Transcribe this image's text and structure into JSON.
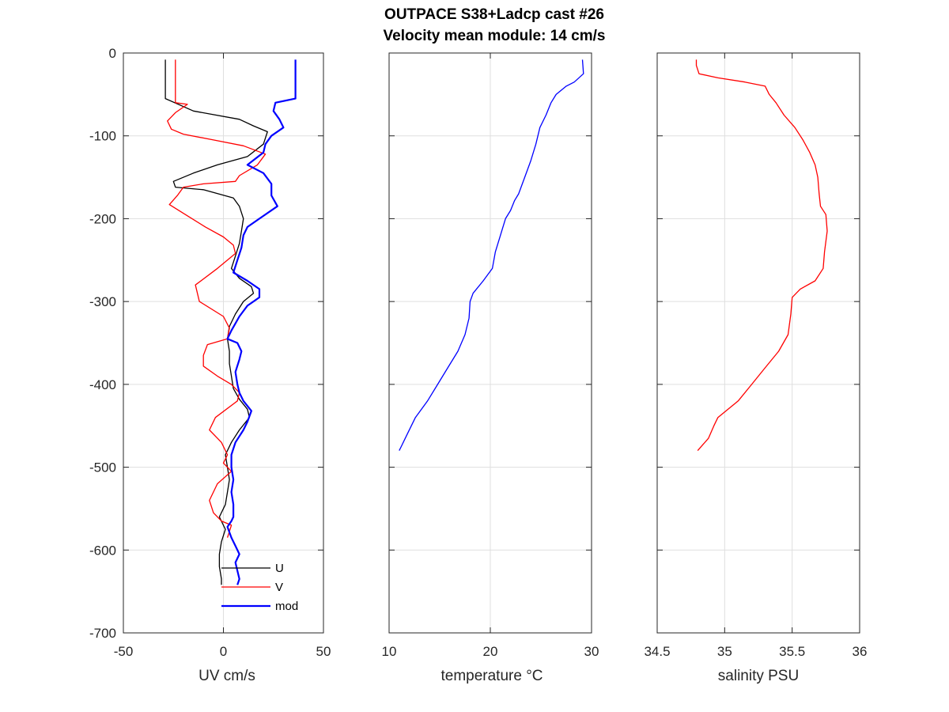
{
  "chart_data": {
    "title": "OUTPACE S38+Ladcp cast #26",
    "subtitle": "Velocity mean module:  14 cm/s",
    "y_ticks": [
      "0",
      "-100",
      "-200",
      "-300",
      "-400",
      "-500",
      "-600",
      "-700"
    ],
    "ylim": [
      -700,
      0
    ],
    "grid": true,
    "panels": [
      {
        "type": "line",
        "xlabel": "UV cm/s",
        "xlim": [
          -50,
          50
        ],
        "x_ticks": [
          "-50",
          "0",
          "50"
        ],
        "legend_position": "bottom-right",
        "series": [
          {
            "name": "U",
            "color": "#000000",
            "line_width": 1.3,
            "points": [
              [
                -29,
                -8
              ],
              [
                -29,
                -55
              ],
              [
                -15,
                -70
              ],
              [
                8,
                -80
              ],
              [
                15,
                -88
              ],
              [
                22,
                -95
              ],
              [
                20,
                -110
              ],
              [
                12,
                -125
              ],
              [
                -3,
                -135
              ],
              [
                -15,
                -145
              ],
              [
                -25,
                -155
              ],
              [
                -24,
                -162
              ],
              [
                -10,
                -165
              ],
              [
                5,
                -175
              ],
              [
                8,
                -185
              ],
              [
                10,
                -200
              ],
              [
                9,
                -215
              ],
              [
                8,
                -230
              ],
              [
                6,
                -245
              ],
              [
                4,
                -260
              ],
              [
                8,
                -272
              ],
              [
                14,
                -282
              ],
              [
                15,
                -290
              ],
              [
                10,
                -300
              ],
              [
                6,
                -315
              ],
              [
                3,
                -330
              ],
              [
                2,
                -345
              ],
              [
                3,
                -360
              ],
              [
                3,
                -375
              ],
              [
                4,
                -390
              ],
              [
                5,
                -405
              ],
              [
                8,
                -418
              ],
              [
                12,
                -430
              ],
              [
                13,
                -440
              ],
              [
                8,
                -455
              ],
              [
                4,
                -470
              ],
              [
                1,
                -485
              ],
              [
                2,
                -500
              ],
              [
                3,
                -515
              ],
              [
                2,
                -530
              ],
              [
                1,
                -545
              ],
              [
                -2,
                -560
              ],
              [
                1,
                -575
              ],
              [
                -1,
                -590
              ],
              [
                -2,
                -605
              ],
              [
                -2,
                -620
              ],
              [
                -1,
                -635
              ],
              [
                -1,
                -642
              ]
            ]
          },
          {
            "name": "V",
            "color": "#ff0000",
            "line_width": 1.3,
            "points": [
              [
                -24,
                -8
              ],
              [
                -24,
                -60
              ],
              [
                -18,
                -62
              ],
              [
                -24,
                -72
              ],
              [
                -28,
                -82
              ],
              [
                -26,
                -92
              ],
              [
                -20,
                -98
              ],
              [
                -5,
                -105
              ],
              [
                10,
                -112
              ],
              [
                21,
                -122
              ],
              [
                17,
                -135
              ],
              [
                8,
                -148
              ],
              [
                6,
                -155
              ],
              [
                -10,
                -158
              ],
              [
                -20,
                -162
              ],
              [
                -23,
                -172
              ],
              [
                -27,
                -183
              ],
              [
                -19,
                -195
              ],
              [
                -9,
                -210
              ],
              [
                0,
                -222
              ],
              [
                5,
                -232
              ],
              [
                6,
                -242
              ],
              [
                -3,
                -260
              ],
              [
                -14,
                -280
              ],
              [
                -12,
                -300
              ],
              [
                0,
                -318
              ],
              [
                3,
                -332
              ],
              [
                2,
                -345
              ],
              [
                -8,
                -352
              ],
              [
                -10,
                -365
              ],
              [
                -10,
                -378
              ],
              [
                -3,
                -390
              ],
              [
                4,
                -400
              ],
              [
                8,
                -410
              ],
              [
                7,
                -420
              ],
              [
                -4,
                -440
              ],
              [
                -7,
                -455
              ],
              [
                -1,
                -470
              ],
              [
                2,
                -485
              ],
              [
                0,
                -495
              ],
              [
                4,
                -505
              ],
              [
                -3,
                -520
              ],
              [
                -7,
                -540
              ],
              [
                -5,
                -555
              ],
              [
                -1,
                -565
              ],
              [
                4,
                -570
              ],
              [
                2,
                -585
              ]
            ]
          },
          {
            "name": "mod",
            "color": "#0000ff",
            "line_width": 2.2,
            "points": [
              [
                36,
                -8
              ],
              [
                36,
                -55
              ],
              [
                26,
                -60
              ],
              [
                25,
                -70
              ],
              [
                28,
                -80
              ],
              [
                30,
                -90
              ],
              [
                24,
                -100
              ],
              [
                21,
                -110
              ],
              [
                20,
                -120
              ],
              [
                12,
                -135
              ],
              [
                20,
                -145
              ],
              [
                24,
                -158
              ],
              [
                24,
                -172
              ],
              [
                27,
                -185
              ],
              [
                18,
                -200
              ],
              [
                12,
                -210
              ],
              [
                10,
                -220
              ],
              [
                9,
                -235
              ],
              [
                7,
                -250
              ],
              [
                5,
                -265
              ],
              [
                12,
                -275
              ],
              [
                18,
                -285
              ],
              [
                18,
                -295
              ],
              [
                12,
                -305
              ],
              [
                8,
                -318
              ],
              [
                4,
                -335
              ],
              [
                2,
                -345
              ],
              [
                7,
                -350
              ],
              [
                9,
                -360
              ],
              [
                8,
                -370
              ],
              [
                6,
                -385
              ],
              [
                7,
                -400
              ],
              [
                8,
                -410
              ],
              [
                10,
                -420
              ],
              [
                14,
                -432
              ],
              [
                12,
                -445
              ],
              [
                10,
                -455
              ],
              [
                6,
                -470
              ],
              [
                4,
                -485
              ],
              [
                4,
                -500
              ],
              [
                5,
                -515
              ],
              [
                4,
                -530
              ],
              [
                5,
                -545
              ],
              [
                5,
                -560
              ],
              [
                4,
                -565
              ],
              [
                2,
                -572
              ],
              [
                4,
                -585
              ],
              [
                6,
                -595
              ],
              [
                8,
                -605
              ],
              [
                6,
                -615
              ],
              [
                7,
                -625
              ],
              [
                8,
                -635
              ],
              [
                7,
                -642
              ]
            ]
          }
        ]
      },
      {
        "type": "line",
        "xlabel": "temperature °C",
        "xlim": [
          10,
          30
        ],
        "x_ticks": [
          "10",
          "20",
          "30"
        ],
        "series": [
          {
            "color": "#0000ff",
            "line_width": 1.3,
            "points": [
              [
                29.1,
                -8
              ],
              [
                29.2,
                -25
              ],
              [
                28.3,
                -35
              ],
              [
                27.5,
                -40
              ],
              [
                26.5,
                -50
              ],
              [
                26,
                -60
              ],
              [
                25.5,
                -75
              ],
              [
                24.9,
                -90
              ],
              [
                24.5,
                -110
              ],
              [
                24,
                -130
              ],
              [
                23.4,
                -150
              ],
              [
                22.8,
                -170
              ],
              [
                22.4,
                -178
              ],
              [
                22.0,
                -190
              ],
              [
                21.5,
                -200
              ],
              [
                21.0,
                -220
              ],
              [
                20.5,
                -240
              ],
              [
                20.2,
                -260
              ],
              [
                19.3,
                -275
              ],
              [
                18.3,
                -290
              ],
              [
                18.0,
                -300
              ],
              [
                17.9,
                -320
              ],
              [
                17.5,
                -340
              ],
              [
                16.8,
                -360
              ],
              [
                15.8,
                -380
              ],
              [
                14.8,
                -400
              ],
              [
                13.8,
                -420
              ],
              [
                12.6,
                -440
              ],
              [
                11.8,
                -460
              ],
              [
                11.2,
                -475
              ],
              [
                11.0,
                -480
              ]
            ]
          }
        ]
      },
      {
        "type": "line",
        "xlabel": "salinity PSU",
        "xlim": [
          34.5,
          36
        ],
        "x_ticks": [
          "34.5",
          "35",
          "35.5",
          "36"
        ],
        "series": [
          {
            "color": "#ff0000",
            "line_width": 1.3,
            "points": [
              [
                34.79,
                -8
              ],
              [
                34.79,
                -15
              ],
              [
                34.81,
                -25
              ],
              [
                34.95,
                -30
              ],
              [
                35.15,
                -35
              ],
              [
                35.3,
                -40
              ],
              [
                35.33,
                -50
              ],
              [
                35.38,
                -60
              ],
              [
                35.44,
                -75
              ],
              [
                35.52,
                -90
              ],
              [
                35.58,
                -105
              ],
              [
                35.63,
                -120
              ],
              [
                35.67,
                -135
              ],
              [
                35.69,
                -150
              ],
              [
                35.7,
                -170
              ],
              [
                35.71,
                -185
              ],
              [
                35.75,
                -195
              ],
              [
                35.76,
                -215
              ],
              [
                35.74,
                -240
              ],
              [
                35.73,
                -260
              ],
              [
                35.67,
                -275
              ],
              [
                35.56,
                -285
              ],
              [
                35.5,
                -295
              ],
              [
                35.49,
                -315
              ],
              [
                35.47,
                -340
              ],
              [
                35.4,
                -360
              ],
              [
                35.3,
                -380
              ],
              [
                35.2,
                -400
              ],
              [
                35.1,
                -420
              ],
              [
                34.95,
                -440
              ],
              [
                34.92,
                -450
              ],
              [
                34.88,
                -465
              ],
              [
                34.8,
                -480
              ]
            ]
          }
        ]
      }
    ]
  }
}
